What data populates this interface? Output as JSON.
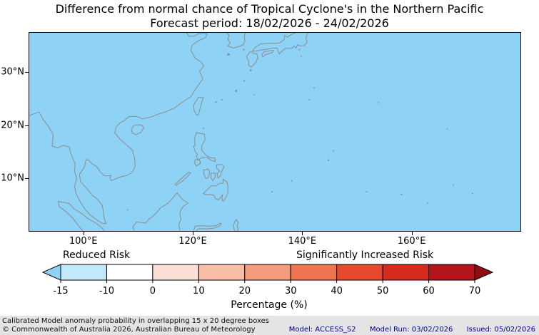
{
  "header": {
    "title": "Difference from normal chance of Tropical Cyclone's in the Northern Pacific",
    "subtitle": "Forecast period: 18/02/2026 - 24/02/2026"
  },
  "map": {
    "ocean_color": "#8ED3F5",
    "coastline_color": "#8C8C8C",
    "extent": {
      "lon_min": 90,
      "lon_max": 180,
      "lat_min": 0,
      "lat_max": 37.5
    },
    "lat_ticks": [
      {
        "label": "30°N",
        "value": 30
      },
      {
        "label": "20°N",
        "value": 20
      },
      {
        "label": "10°N",
        "value": 10
      }
    ],
    "lon_ticks": [
      {
        "label": "100°E",
        "value": 100
      },
      {
        "label": "120°E",
        "value": 120
      },
      {
        "label": "140°E",
        "value": 140
      },
      {
        "label": "160°E",
        "value": 160
      }
    ]
  },
  "colorbar": {
    "left_label": "Reduced Risk",
    "right_label": "Significantly Increased Risk",
    "axis_label": "Percentage (%)",
    "tick_labels": [
      "-15",
      "-10",
      "0",
      "10",
      "20",
      "30",
      "40",
      "50",
      "60",
      "70"
    ],
    "tick_values": [
      -15,
      -10,
      0,
      10,
      20,
      30,
      40,
      50,
      60,
      70
    ],
    "left_arrow_color": "#8ED3F5",
    "right_arrow_color": "#8D0E14",
    "segment_colors": [
      "#C3E7FB",
      "#FFFFFF",
      "#FBE0D6",
      "#F8BEA6",
      "#F49C7C",
      "#EF7552",
      "#E54A2E",
      "#D32B1E",
      "#B2141A"
    ]
  },
  "chart_data": {
    "type": "heatmap",
    "title": "Difference from normal chance of Tropical Cyclone's in the Northern Pacific",
    "subtitle": "Forecast period: 18/02/2026 - 24/02/2026",
    "x_range_deg_east": [
      90,
      180
    ],
    "y_range_deg_north": [
      0,
      37.5
    ],
    "x_tick_labels": [
      "100°E",
      "120°E",
      "140°E",
      "160°E"
    ],
    "y_tick_labels": [
      "10°N",
      "20°N",
      "30°N"
    ],
    "colorbar_ticks_percent": [
      -15,
      -10,
      0,
      10,
      20,
      30,
      40,
      50,
      60,
      70
    ],
    "colorbar_units": "Percentage (%)",
    "field_description": "Entire displayed domain shaded the uniform lightest-blue (reduced risk) bin; no increased-risk areas shown",
    "legend_position": "bottom"
  },
  "footer": {
    "line1": "Calibrated Model anomaly probability in overlapping 15 x 20 degree boxes",
    "line2": "© Commonwealth of Australia 2026, Australian Bureau of Meteorology",
    "model": "Model: ACCESS_S2",
    "model_run": "Model Run: 03/02/2026",
    "issued": "Issued: 05/02/2026"
  }
}
